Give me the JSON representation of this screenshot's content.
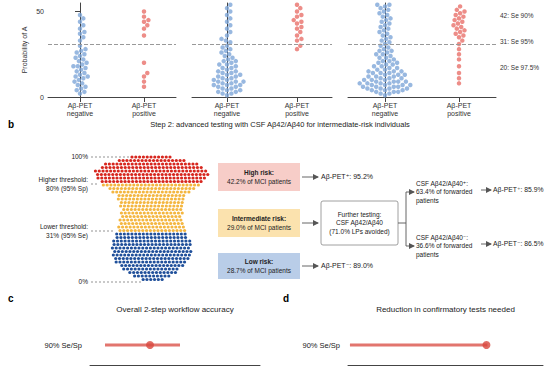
{
  "chart_data": [
    {
      "type": "strip",
      "categories": [
        "Aβ-PET\nnegative",
        "Aβ-PET\npositive"
      ],
      "colors": [
        "#7ea6d8",
        "#e8706a"
      ],
      "values": [
        [
          48,
          46,
          44,
          42,
          40,
          38,
          37,
          35,
          33,
          30,
          28,
          27,
          26,
          25,
          24,
          23,
          22,
          21,
          20,
          19,
          18,
          18,
          17,
          16,
          15,
          14,
          13,
          12,
          12,
          11,
          10,
          9,
          8,
          7,
          6,
          5,
          4,
          3,
          2
        ],
        [
          50,
          47,
          45,
          44,
          42,
          40,
          36,
          20,
          14,
          12,
          9,
          6
        ]
      ],
      "ylabel": "Probability of A",
      "ylim": [
        0,
        55
      ],
      "yticks": [
        0,
        50
      ],
      "threshold": 31
    },
    {
      "type": "strip",
      "categories": [
        "Aβ-PET\nnegative",
        "Aβ-PET\npositive"
      ],
      "colors": [
        "#7ea6d8",
        "#e8706a"
      ],
      "values": [
        [
          54,
          52,
          50,
          48,
          46,
          44,
          42,
          40,
          38,
          36,
          34,
          33,
          32,
          30,
          29,
          28,
          27,
          26,
          25,
          24,
          23,
          22,
          21,
          21,
          20,
          19,
          19,
          18,
          17,
          17,
          16,
          15,
          15,
          14,
          14,
          13,
          13,
          12,
          12,
          11,
          11,
          10,
          10,
          9,
          9,
          9,
          8,
          8,
          7,
          7,
          7,
          6,
          6,
          5,
          5,
          4,
          4,
          3,
          3,
          2,
          2,
          1
        ],
        [
          54,
          52,
          50,
          48,
          47,
          45,
          44,
          43,
          41,
          40,
          38,
          36,
          34,
          33,
          30,
          28
        ]
      ],
      "ylim": [
        0,
        55
      ],
      "threshold": 31,
      "tick_labels": "x"
    },
    {
      "type": "strip",
      "categories": [
        "Aβ-PET\nnegative",
        "Aβ-PET\npositive"
      ],
      "colors": [
        "#7ea6d8",
        "#e8706a"
      ],
      "values": [
        [
          54,
          54,
          53,
          52,
          51,
          50,
          49,
          48,
          47,
          46,
          45,
          44,
          43,
          42,
          41,
          40,
          39,
          38,
          37,
          36,
          35,
          34,
          33,
          32,
          31,
          30,
          29,
          28,
          27,
          27,
          26,
          25,
          25,
          24,
          23,
          23,
          22,
          21,
          21,
          20,
          20,
          19,
          19,
          18,
          18,
          17,
          17,
          16,
          16,
          15,
          15,
          15,
          14,
          14,
          14,
          13,
          13,
          13,
          12,
          12,
          12,
          11,
          11,
          11,
          10,
          10,
          10,
          9,
          9,
          9,
          9,
          8,
          8,
          8,
          8,
          7,
          7,
          7,
          7,
          6,
          6,
          6,
          6,
          5,
          5,
          5,
          5,
          4,
          4,
          4,
          3,
          3,
          3,
          2,
          2,
          1
        ],
        [
          53,
          51,
          50,
          49,
          48,
          47,
          46,
          45,
          44,
          43,
          42,
          41,
          40,
          39,
          38,
          37,
          36,
          35,
          33,
          31,
          28,
          25,
          22,
          18,
          14,
          11,
          8
        ]
      ],
      "ylim": [
        0,
        55
      ],
      "threshold": 31,
      "tick_labels": "x",
      "annotations": [
        "42: Se 90%",
        "31: Se 95%",
        "20: Se 97.5%"
      ]
    },
    {
      "type": "forest",
      "panel": "c",
      "title": "Overall 2-step workflow accuracy",
      "categories": [
        "90% Se/Sp"
      ],
      "values": [
        88
      ],
      "ci_low": [
        83.5
      ],
      "ci_high": [
        91
      ],
      "color": "#d8473d",
      "xlim": [
        82,
        99
      ],
      "tick_labels": "y"
    },
    {
      "type": "forest",
      "panel": "d",
      "title": "Reduction in confirmatory tests needed",
      "categories": [
        "90% Se/Sp"
      ],
      "values": [
        71
      ],
      "ci_low": [
        1
      ],
      "ci_high": [
        71.5
      ],
      "color": "#d8473d",
      "xlim": [
        0,
        100
      ],
      "tick_labels": "y"
    }
  ],
  "diagram": {
    "panel": "b",
    "title": "Step 2: advanced testing with CSF Aβ42/Aβ40 for intermediate-risk individuals",
    "scale_labels": [
      "100%",
      "Higher threshold:\n80% (95% Sp)",
      "Lower threshold:\n31% (95% Se)",
      "0%"
    ],
    "groups": [
      {
        "heading": "High risk:",
        "text": "42.2% of MCI patients",
        "result": "Aβ-PET⁺: 95.2%"
      },
      {
        "heading": "Intermediate risk:",
        "text": "29.0% of MCI patients"
      },
      {
        "heading": "Low risk:",
        "text": "28.7% of MCI patients",
        "result": "Aβ-PET⁻: 89.0%"
      }
    ],
    "further_testing": "Further testing:\nCSF Aβ42/Aβ40\n(71.0% LPs avoided)",
    "branches": [
      {
        "text": "CSF Aβ42/Aβ40⁺:\n63.4% of forwarded\npatients",
        "result": "Aβ-PET⁺: 85.9%"
      },
      {
        "text": "CSF Aβ42/Aβ40⁻:\n36.6% of forwarded\npatients",
        "result": "Aβ-PET⁻: 86.5%"
      }
    ]
  }
}
